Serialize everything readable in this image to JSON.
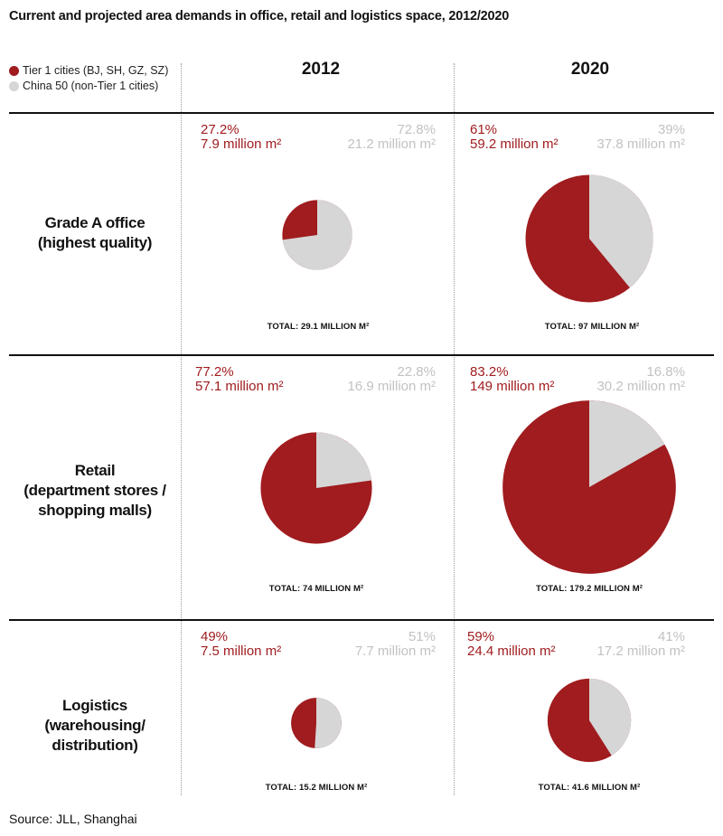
{
  "title": "Current and projected area demands in office, retail and logistics space, 2012/2020",
  "source": "Source: JLL, Shanghai",
  "legend": [
    {
      "label": "Tier 1 cities (BJ, SH, GZ, SZ)",
      "color": "#a01c1f"
    },
    {
      "label": "China 50 (non-Tier 1 cities)",
      "color": "#d6d6d6"
    }
  ],
  "years": [
    "2012",
    "2020"
  ],
  "rows": [
    {
      "label_lines": [
        "Grade A office",
        "(highest quality)"
      ]
    },
    {
      "label_lines": [
        "Retail",
        "(department stores /",
        "shopping malls)"
      ]
    },
    {
      "label_lines": [
        "Logistics",
        "(warehousing/",
        "distribution)"
      ]
    }
  ],
  "chart_data": {
    "type": "pie",
    "series_names": [
      "Tier 1 cities (BJ, SH, GZ, SZ)",
      "China 50 (non-Tier 1 cities)"
    ],
    "colors": {
      "tier1": "#a01c1f",
      "other": "#d6d6d6"
    },
    "cells": [
      {
        "category": "Grade A office",
        "year": "2012",
        "tier1_pct": 27.2,
        "tier1_pct_label": "27.2%",
        "tier1_area_label": "7.9 million m²",
        "other_pct": 72.8,
        "other_pct_label": "72.8%",
        "other_area_label": "21.2 million m²",
        "total": 29.1,
        "total_label": "TOTAL: 29.1  MILLION M²"
      },
      {
        "category": "Grade A office",
        "year": "2020",
        "tier1_pct": 61,
        "tier1_pct_label": "61%",
        "tier1_area_label": "59.2 million m²",
        "other_pct": 39,
        "other_pct_label": "39%",
        "other_area_label": "37.8 million m²",
        "total": 97,
        "total_label": "TOTAL: 97 MILLION M²"
      },
      {
        "category": "Retail",
        "year": "2012",
        "tier1_pct": 77.2,
        "tier1_pct_label": "77.2%",
        "tier1_area_label": "57.1 million m²",
        "other_pct": 22.8,
        "other_pct_label": "22.8%",
        "other_area_label": "16.9 million m²",
        "total": 74,
        "total_label": "TOTAL: 74 MILLION M²"
      },
      {
        "category": "Retail",
        "year": "2020",
        "tier1_pct": 83.2,
        "tier1_pct_label": "83.2%",
        "tier1_area_label": "149 million m²",
        "other_pct": 16.8,
        "other_pct_label": "16.8%",
        "other_area_label": "30.2 million m²",
        "total": 179.2,
        "total_label": "TOTAL: 179.2 MILLION M²"
      },
      {
        "category": "Logistics",
        "year": "2012",
        "tier1_pct": 49,
        "tier1_pct_label": "49%",
        "tier1_area_label": "7.5 million m²",
        "other_pct": 51,
        "other_pct_label": "51%",
        "other_area_label": "7.7 million m²",
        "total": 15.2,
        "total_label": "TOTAL: 15.2 MILLION M²"
      },
      {
        "category": "Logistics",
        "year": "2020",
        "tier1_pct": 59,
        "tier1_pct_label": "59%",
        "tier1_area_label": "24.4 million m²",
        "other_pct": 41,
        "other_pct_label": "41%",
        "other_area_label": "17.2 million m²",
        "total": 41.6,
        "total_label": "TOTAL: 41.6 MILLION M²"
      }
    ]
  }
}
